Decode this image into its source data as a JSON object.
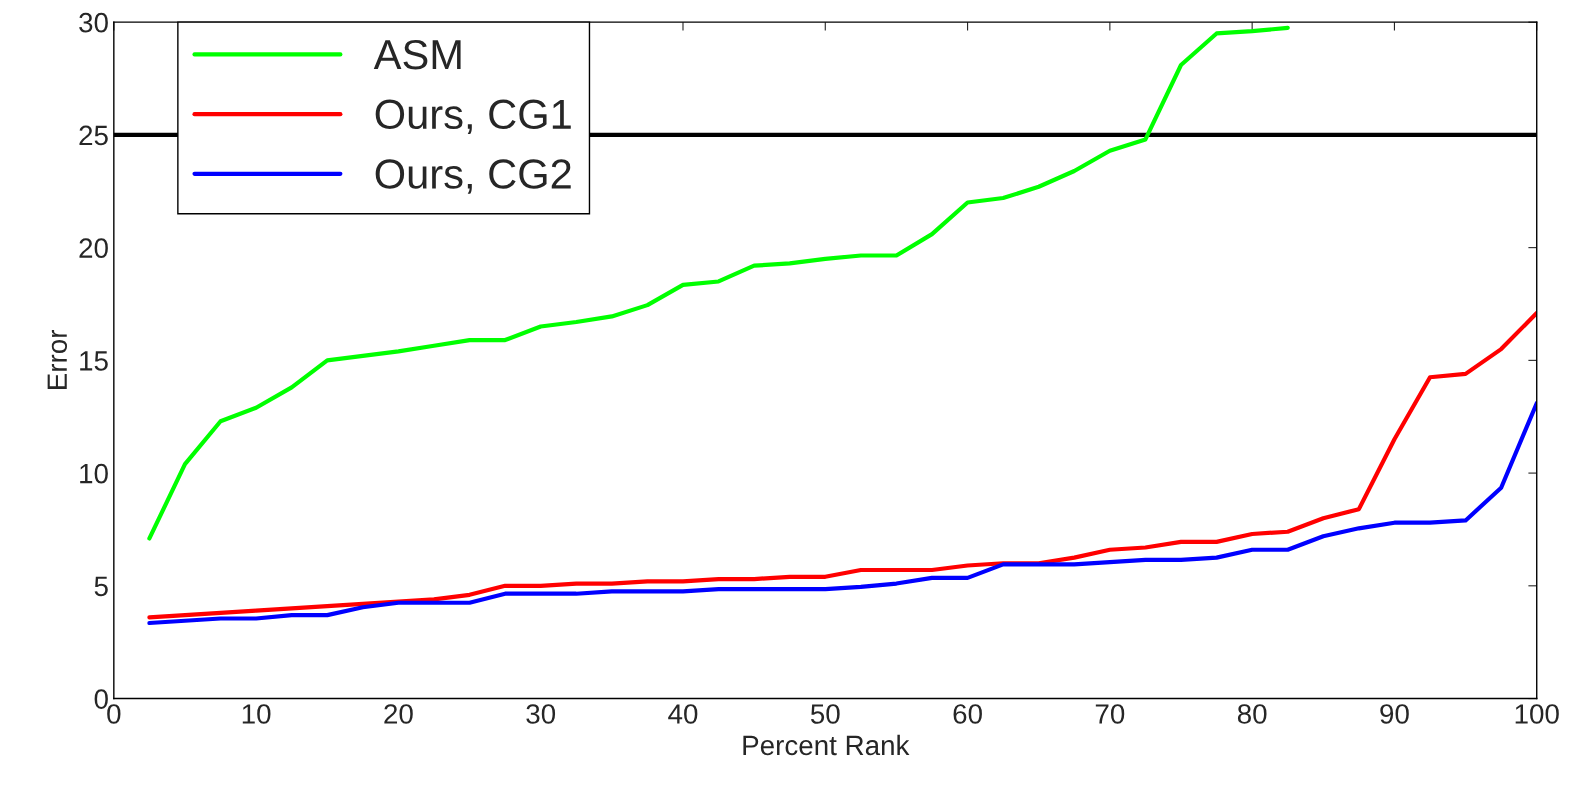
{
  "chart_data": {
    "type": "line",
    "xlabel": "Percent Rank",
    "ylabel": "Error",
    "x": [
      2.5,
      5,
      7.5,
      10,
      12.5,
      15,
      17.5,
      20,
      22.5,
      25,
      27.5,
      30,
      32.5,
      35,
      37.5,
      40,
      42.5,
      45,
      47.5,
      50,
      52.5,
      55,
      57.5,
      60,
      62.5,
      65,
      67.5,
      70,
      72.5,
      75,
      77.5,
      80,
      82.5,
      85,
      87.5,
      90,
      92.5,
      95,
      97.5,
      100
    ],
    "series": [
      {
        "name": "ASM",
        "color": "#00ff00",
        "values": [
          7.1,
          10.4,
          12.3,
          12.9,
          13.8,
          15.0,
          15.2,
          15.4,
          15.65,
          15.9,
          15.9,
          16.5,
          16.7,
          16.95,
          17.45,
          18.35,
          18.5,
          19.2,
          19.3,
          19.5,
          19.65,
          19.65,
          20.6,
          22.0,
          22.2,
          22.7,
          23.4,
          24.3,
          24.8,
          28.1,
          29.5,
          29.6,
          29.75,
          null,
          null,
          null,
          null,
          null,
          null,
          null
        ]
      },
      {
        "name": "Ours, CG1",
        "color": "#ff0000",
        "values": [
          3.6,
          3.7,
          3.8,
          3.9,
          4.0,
          4.1,
          4.2,
          4.3,
          4.4,
          4.6,
          5.0,
          5.0,
          5.1,
          5.1,
          5.2,
          5.2,
          5.3,
          5.3,
          5.4,
          5.4,
          5.7,
          5.7,
          5.7,
          5.9,
          6.0,
          6.0,
          6.25,
          6.6,
          6.7,
          6.95,
          6.95,
          7.3,
          7.4,
          8.0,
          8.4,
          11.5,
          14.25,
          14.4,
          15.5,
          17.1
        ]
      },
      {
        "name": "Ours, CG2",
        "color": "#0000ff",
        "values": [
          3.35,
          3.45,
          3.55,
          3.55,
          3.7,
          3.7,
          4.05,
          4.25,
          4.25,
          4.25,
          4.65,
          4.65,
          4.65,
          4.75,
          4.75,
          4.75,
          4.85,
          4.85,
          4.85,
          4.85,
          4.95,
          5.1,
          5.35,
          5.35,
          5.95,
          5.95,
          5.95,
          6.05,
          6.15,
          6.15,
          6.25,
          6.6,
          6.6,
          7.2,
          7.55,
          7.8,
          7.8,
          7.9,
          9.35,
          13.1
        ]
      }
    ],
    "ref_lines": [
      {
        "axis": "y",
        "value": 25,
        "color": "#000000"
      }
    ],
    "xlim": [
      0,
      100
    ],
    "ylim": [
      0,
      30
    ],
    "xticks": [
      0,
      10,
      20,
      30,
      40,
      50,
      60,
      70,
      80,
      90,
      100
    ],
    "yticks": [
      0,
      5,
      10,
      15,
      20,
      25,
      30
    ],
    "grid": false,
    "legend": "top left",
    "marker": "none",
    "line_style": "solid"
  }
}
